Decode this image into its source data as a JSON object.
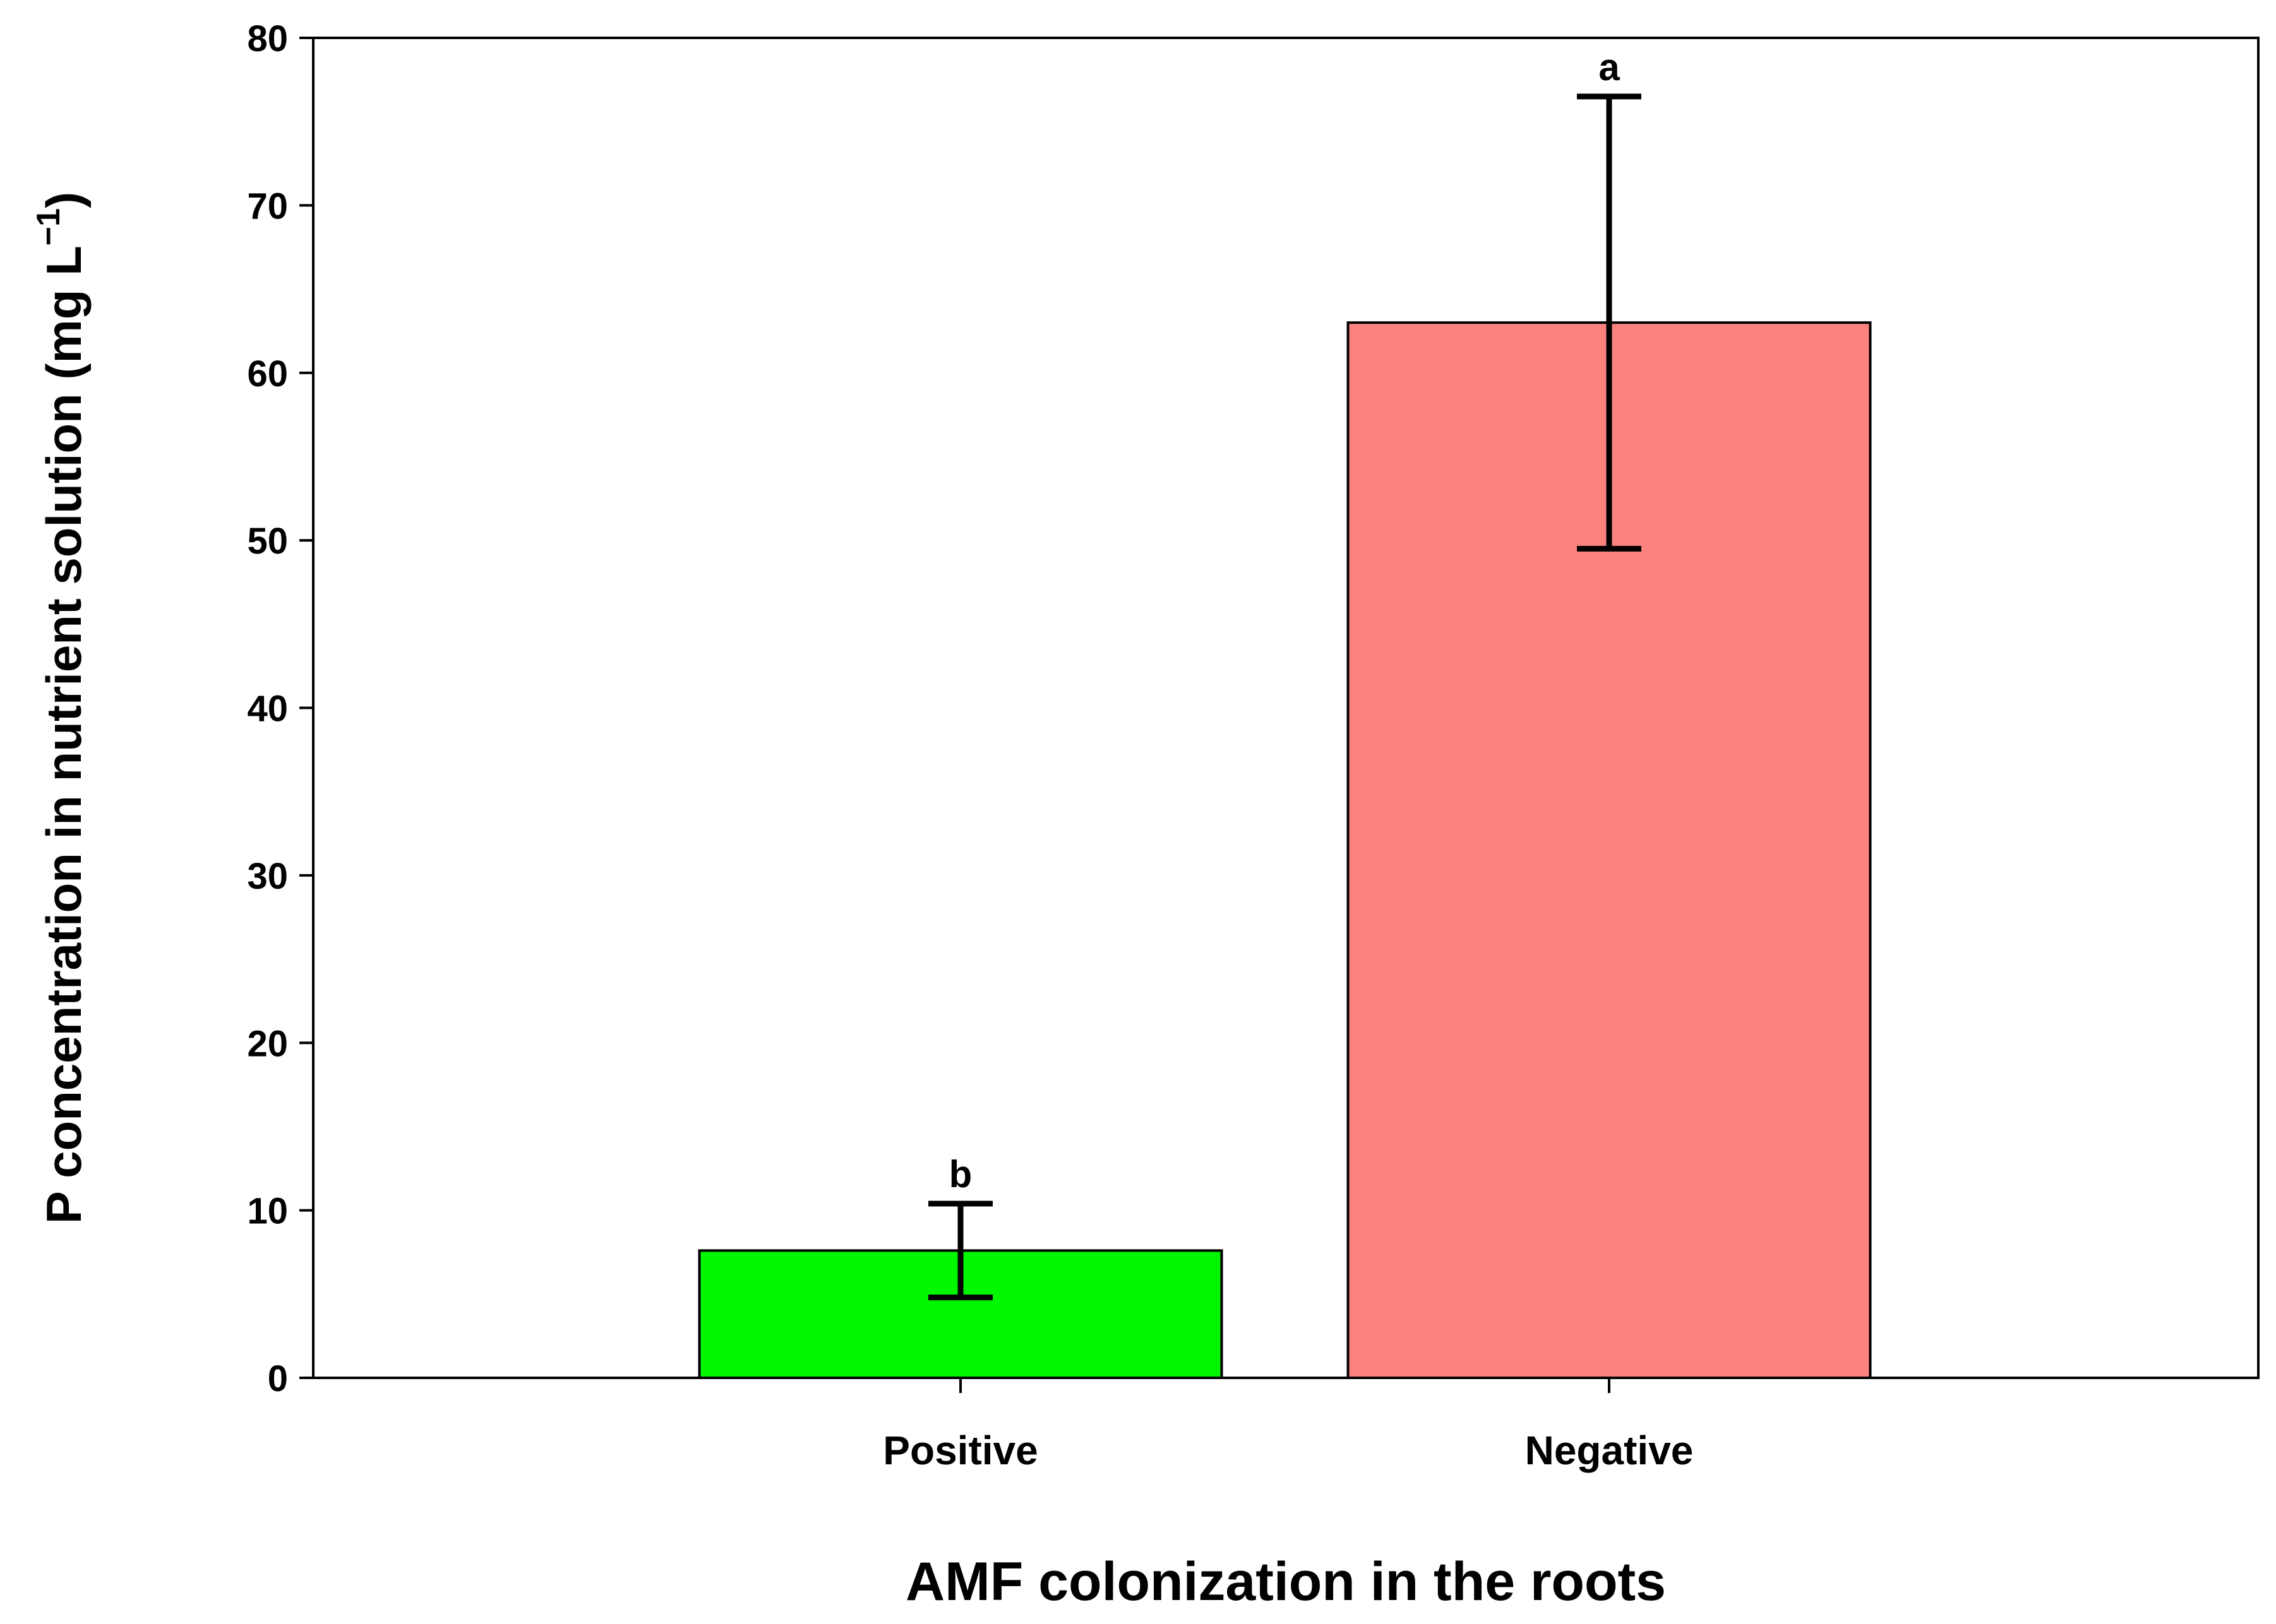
{
  "chart_data": {
    "type": "bar",
    "title": "",
    "xlabel": "AMF colonization in the roots",
    "ylabel_main": "P concentration in nutrient solution (mg L",
    "ylabel_sup": "−1",
    "ylabel_close": ")",
    "ylim": [
      0,
      80
    ],
    "yticks": [
      0,
      10,
      20,
      30,
      40,
      50,
      60,
      70,
      80
    ],
    "yticks_text": [
      "0",
      "10",
      "20",
      "30",
      "40",
      "50",
      "60",
      "70",
      "80"
    ],
    "grid": false,
    "legend": "none",
    "categories": [
      "Positive",
      "Negative"
    ],
    "values": [
      7.6,
      63.0
    ],
    "error_low": [
      4.8,
      49.5
    ],
    "error_high": [
      10.4,
      76.5
    ],
    "significance": [
      "b",
      "a"
    ],
    "colors": [
      "#00f700",
      "#fa8380"
    ]
  }
}
